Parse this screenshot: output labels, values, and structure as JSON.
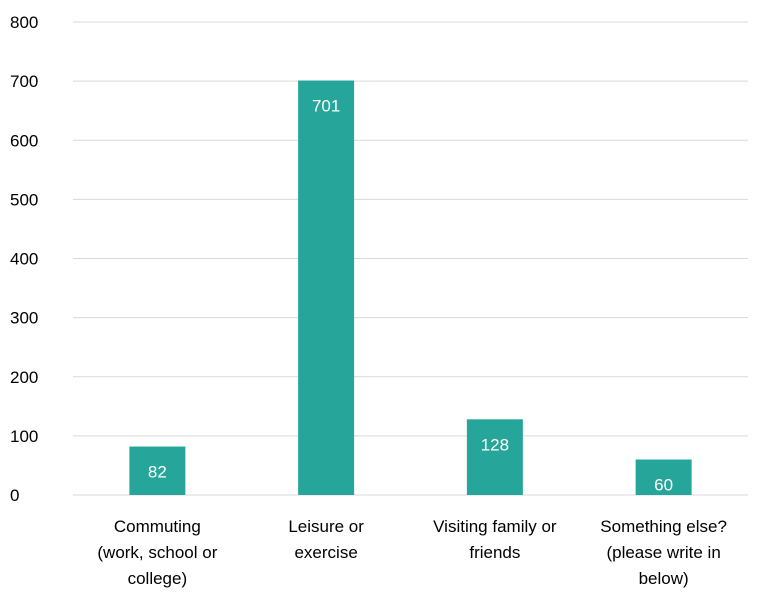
{
  "chart_data": {
    "type": "bar",
    "categories": [
      [
        "Commuting",
        "(work, school or",
        "college)"
      ],
      [
        "Leisure or",
        "exercise"
      ],
      [
        "Visiting family or",
        "friends"
      ],
      [
        "Something else?",
        "(please write in",
        "below)"
      ]
    ],
    "values": [
      82,
      701,
      128,
      60
    ],
    "ylim": [
      0,
      800
    ],
    "yticks": [
      0,
      100,
      200,
      300,
      400,
      500,
      600,
      700,
      800
    ],
    "bar_color": "#26a69a",
    "grid": true,
    "legend": "none",
    "data_labels": true
  }
}
